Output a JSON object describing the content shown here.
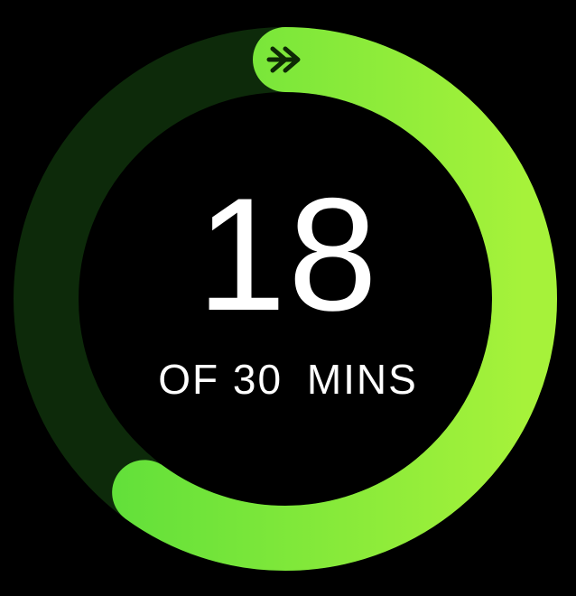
{
  "activity": {
    "value": "18",
    "goal_prefix": "OF",
    "goal": "30",
    "unit": "MINS",
    "progress_fraction": 0.6
  },
  "icons": {
    "ring_end": "double-chevron-right-icon"
  },
  "colors": {
    "background": "#000000",
    "ring_track": "#0d2a0a",
    "ring_start": "#57dd3a",
    "ring_end": "#a6f23a",
    "icon": "#0e2a05",
    "text": "#ffffff"
  }
}
